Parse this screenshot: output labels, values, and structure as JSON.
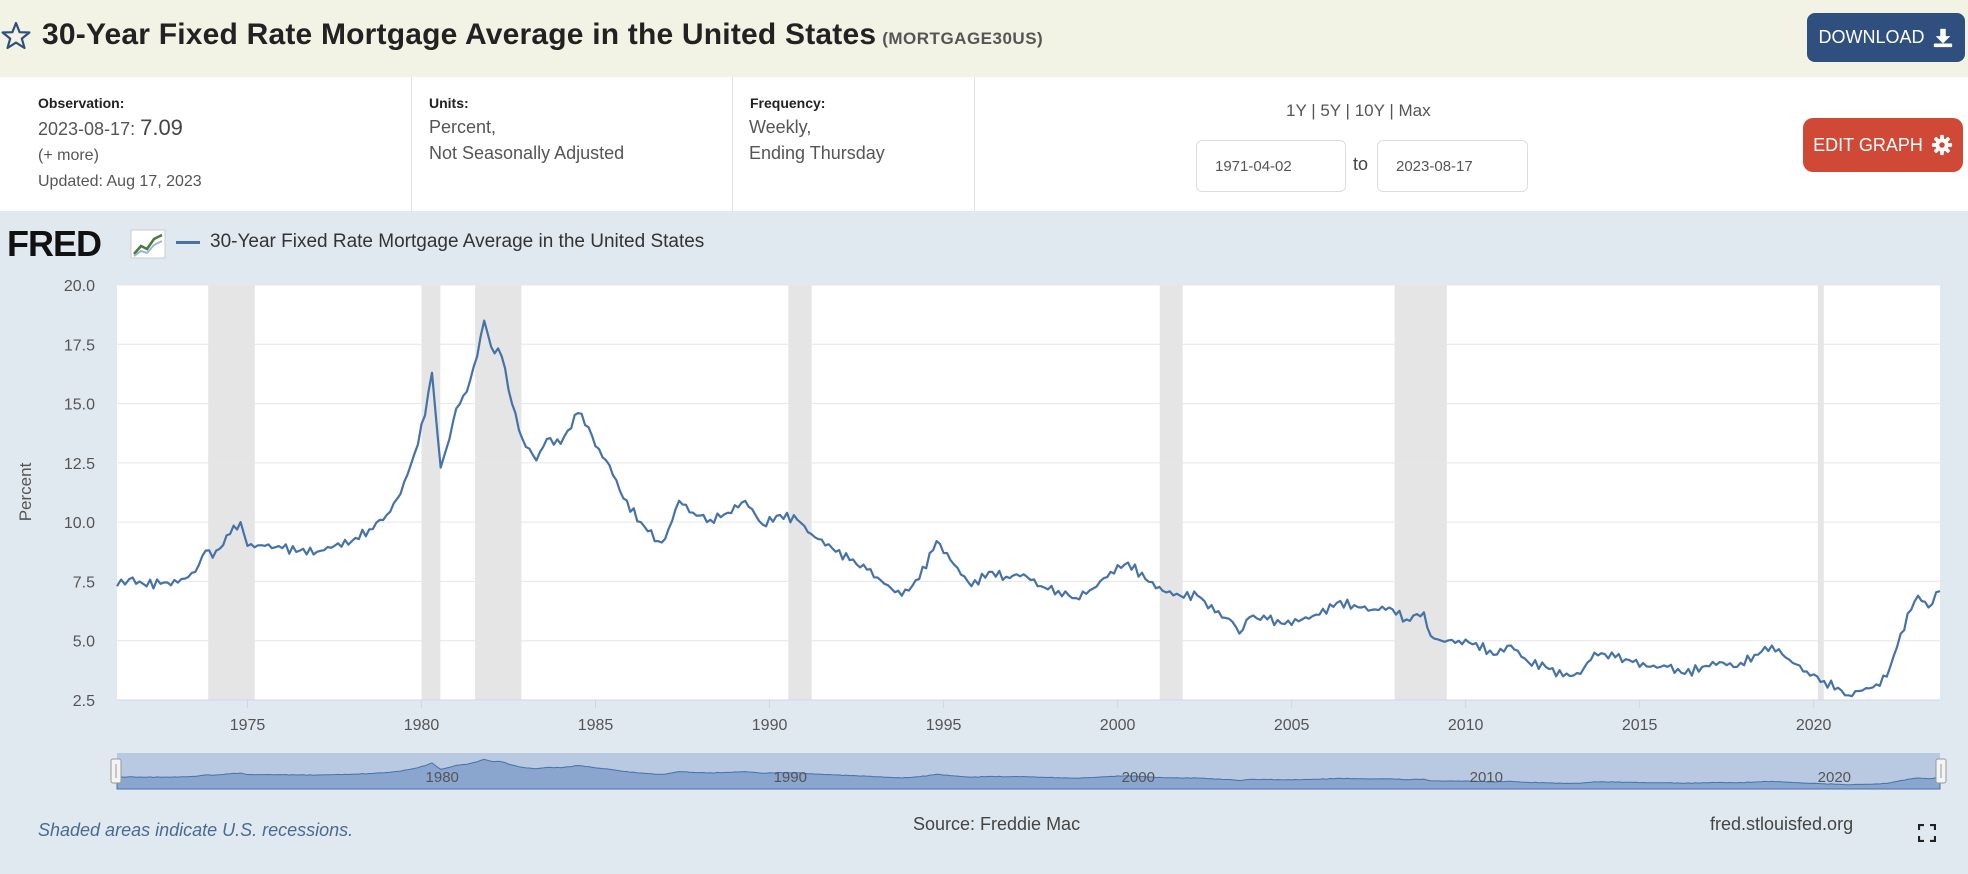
{
  "header": {
    "title": "30-Year Fixed Rate Mortgage Average in the United States",
    "series_id": "(MORTGAGE30US)",
    "download_label": "DOWNLOAD",
    "icons": [
      "star-icon",
      "download-icon"
    ]
  },
  "meta": {
    "observation_label": "Observation:",
    "observation_date": "2023-08-17:",
    "observation_value": "7.09",
    "more_label": "(+ more)",
    "updated": "Updated: Aug 17, 2023",
    "units_label": "Units:",
    "units_line1": "Percent,",
    "units_line2": "Not Seasonally Adjusted",
    "frequency_label": "Frequency:",
    "frequency_line1": "Weekly,",
    "frequency_line2": "Ending Thursday"
  },
  "range": {
    "links": "1Y | 5Y | 10Y | Max",
    "start": "1971-04-02",
    "to_label": "to",
    "end": "2023-08-17",
    "edit_label": "EDIT GRAPH",
    "edit_icon": "gear-icon"
  },
  "colors": {
    "series": "#4572a7",
    "recession": "#e5e5e5",
    "panel": "#e1e9f0",
    "header_bg": "#f2f3e4",
    "download_bg": "#2f4f7f",
    "edit_bg": "#d04836"
  },
  "footer": {
    "note": "Shaded areas indicate U.S. recessions.",
    "source": "Source: Freddie Mac",
    "site": "fred.stlouisfed.org",
    "fullscreen_icon": "fullscreen-icon"
  },
  "logo_text": "FRED",
  "chart_data": {
    "type": "line",
    "title": "",
    "legend": [
      "30-Year Fixed Rate Mortgage Average in the United States"
    ],
    "xlabel": "",
    "ylabel": "Percent",
    "xlim": [
      1971.25,
      2023.63
    ],
    "ylim": [
      2.5,
      20.0
    ],
    "yticks": [
      "20.0",
      "17.5",
      "15.0",
      "12.5",
      "10.0",
      "7.5",
      "5.0",
      "2.5"
    ],
    "ytick_values": [
      20.0,
      17.5,
      15.0,
      12.5,
      10.0,
      7.5,
      5.0,
      2.5
    ],
    "xticks": [
      "1975",
      "1980",
      "1985",
      "1990",
      "1995",
      "2000",
      "2005",
      "2010",
      "2015",
      "2020"
    ],
    "xtick_values": [
      1975,
      1980,
      1985,
      1990,
      1995,
      2000,
      2005,
      2010,
      2015,
      2020
    ],
    "navigator_labels": [
      "1980",
      "1990",
      "2000",
      "2010",
      "2020"
    ],
    "grid": true,
    "recessions": [
      [
        1973.87,
        1975.21
      ],
      [
        1980.0,
        1980.54
      ],
      [
        1981.54,
        1982.87
      ],
      [
        1990.54,
        1991.21
      ],
      [
        2001.21,
        2001.87
      ],
      [
        2007.96,
        2009.46
      ],
      [
        2020.12,
        2020.29
      ]
    ],
    "series": [
      {
        "name": "30-Year Fixed Rate Mortgage Average in the United States",
        "x": [
          1971.25,
          1971.6,
          1972.0,
          1972.5,
          1973.0,
          1973.5,
          1973.8,
          1974.0,
          1974.5,
          1974.8,
          1975.0,
          1975.5,
          1976.0,
          1976.5,
          1977.0,
          1977.5,
          1978.0,
          1978.5,
          1979.0,
          1979.4,
          1979.8,
          1980.1,
          1980.3,
          1980.55,
          1980.8,
          1981.0,
          1981.3,
          1981.6,
          1981.8,
          1982.0,
          1982.3,
          1982.6,
          1982.9,
          1983.3,
          1983.6,
          1984.0,
          1984.5,
          1984.8,
          1985.0,
          1985.4,
          1985.8,
          1986.3,
          1986.8,
          1987.0,
          1987.4,
          1987.8,
          1988.3,
          1988.8,
          1989.3,
          1989.8,
          1990.3,
          1990.8,
          1991.2,
          1991.8,
          1992.3,
          1992.8,
          1993.3,
          1993.8,
          1994.3,
          1994.8,
          1995.2,
          1995.8,
          1996.3,
          1996.8,
          1997.3,
          1997.8,
          1998.3,
          1998.8,
          1999.3,
          1999.8,
          2000.3,
          2000.8,
          2001.3,
          2001.8,
          2002.3,
          2002.8,
          2003.3,
          2003.5,
          2003.8,
          2004.3,
          2004.8,
          2005.3,
          2005.8,
          2006.3,
          2006.8,
          2007.3,
          2007.8,
          2008.3,
          2008.8,
          2009.0,
          2009.3,
          2009.8,
          2010.3,
          2010.8,
          2011.3,
          2011.8,
          2012.3,
          2012.8,
          2013.3,
          2013.7,
          2014.3,
          2014.8,
          2015.3,
          2015.8,
          2016.3,
          2016.8,
          2017.3,
          2017.8,
          2018.3,
          2018.8,
          2019.3,
          2019.8,
          2020.3,
          2020.8,
          2021.0,
          2021.5,
          2021.9,
          2022.2,
          2022.5,
          2022.8,
          2023.0,
          2023.3,
          2023.63
        ],
        "values": [
          7.3,
          7.6,
          7.4,
          7.4,
          7.45,
          7.9,
          8.8,
          8.5,
          9.5,
          10.0,
          9.0,
          9.0,
          8.9,
          8.8,
          8.75,
          9.0,
          9.2,
          9.7,
          10.3,
          11.2,
          12.9,
          14.5,
          16.3,
          12.3,
          13.5,
          14.8,
          15.5,
          17.0,
          18.5,
          17.4,
          17.0,
          15.0,
          13.5,
          12.6,
          13.5,
          13.3,
          14.6,
          14.0,
          13.2,
          12.4,
          11.0,
          10.0,
          9.2,
          9.3,
          10.9,
          10.4,
          10.1,
          10.4,
          10.9,
          9.9,
          10.3,
          10.1,
          9.5,
          8.9,
          8.4,
          8.0,
          7.4,
          6.9,
          7.6,
          9.2,
          8.4,
          7.3,
          7.9,
          7.7,
          7.8,
          7.3,
          7.1,
          6.8,
          7.2,
          7.9,
          8.3,
          7.6,
          7.1,
          6.9,
          6.9,
          6.2,
          5.8,
          5.3,
          6.0,
          5.9,
          5.7,
          5.9,
          6.1,
          6.6,
          6.5,
          6.3,
          6.4,
          5.9,
          6.2,
          5.2,
          5.0,
          5.0,
          4.9,
          4.4,
          4.8,
          4.1,
          3.9,
          3.5,
          3.6,
          4.5,
          4.3,
          4.1,
          3.9,
          3.9,
          3.6,
          3.9,
          4.1,
          3.9,
          4.4,
          4.8,
          4.2,
          3.7,
          3.3,
          2.9,
          2.7,
          3.0,
          3.1,
          3.9,
          5.3,
          6.3,
          6.9,
          6.4,
          7.09
        ]
      }
    ]
  }
}
